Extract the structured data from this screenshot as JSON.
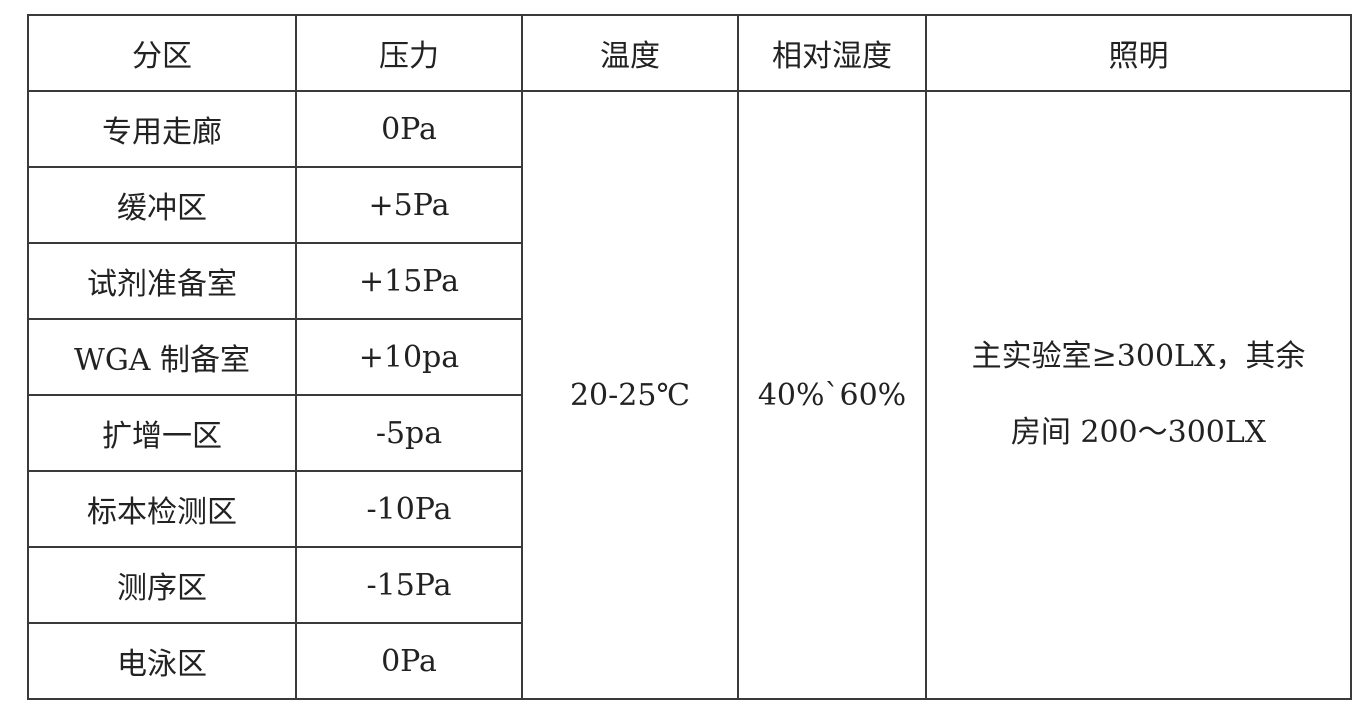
{
  "headers": [
    "分区",
    "压力",
    "温度",
    "相对湿度",
    "照明"
  ],
  "rows": [
    {
      "zone": "专用走廊",
      "pressure": "0Pa"
    },
    {
      "zone": "缓冲区",
      "pressure": "+5Pa"
    },
    {
      "zone": "试剂准备室",
      "pressure": "+15Pa"
    },
    {
      "zone": "WGA 制备室",
      "pressure": "+10pa"
    },
    {
      "zone": "扩增一区",
      "pressure": "-5pa"
    },
    {
      "zone": "标本检测区",
      "pressure": "-10Pa"
    },
    {
      "zone": "测序区",
      "pressure": "-15Pa"
    },
    {
      "zone": "电泳区",
      "pressure": "0Pa"
    }
  ],
  "temperature": "20-25℃",
  "humidity": "40%`60%",
  "lighting": {
    "line1": "主实验室≥300LX，其余",
    "line2": "房间 200～300LX"
  }
}
